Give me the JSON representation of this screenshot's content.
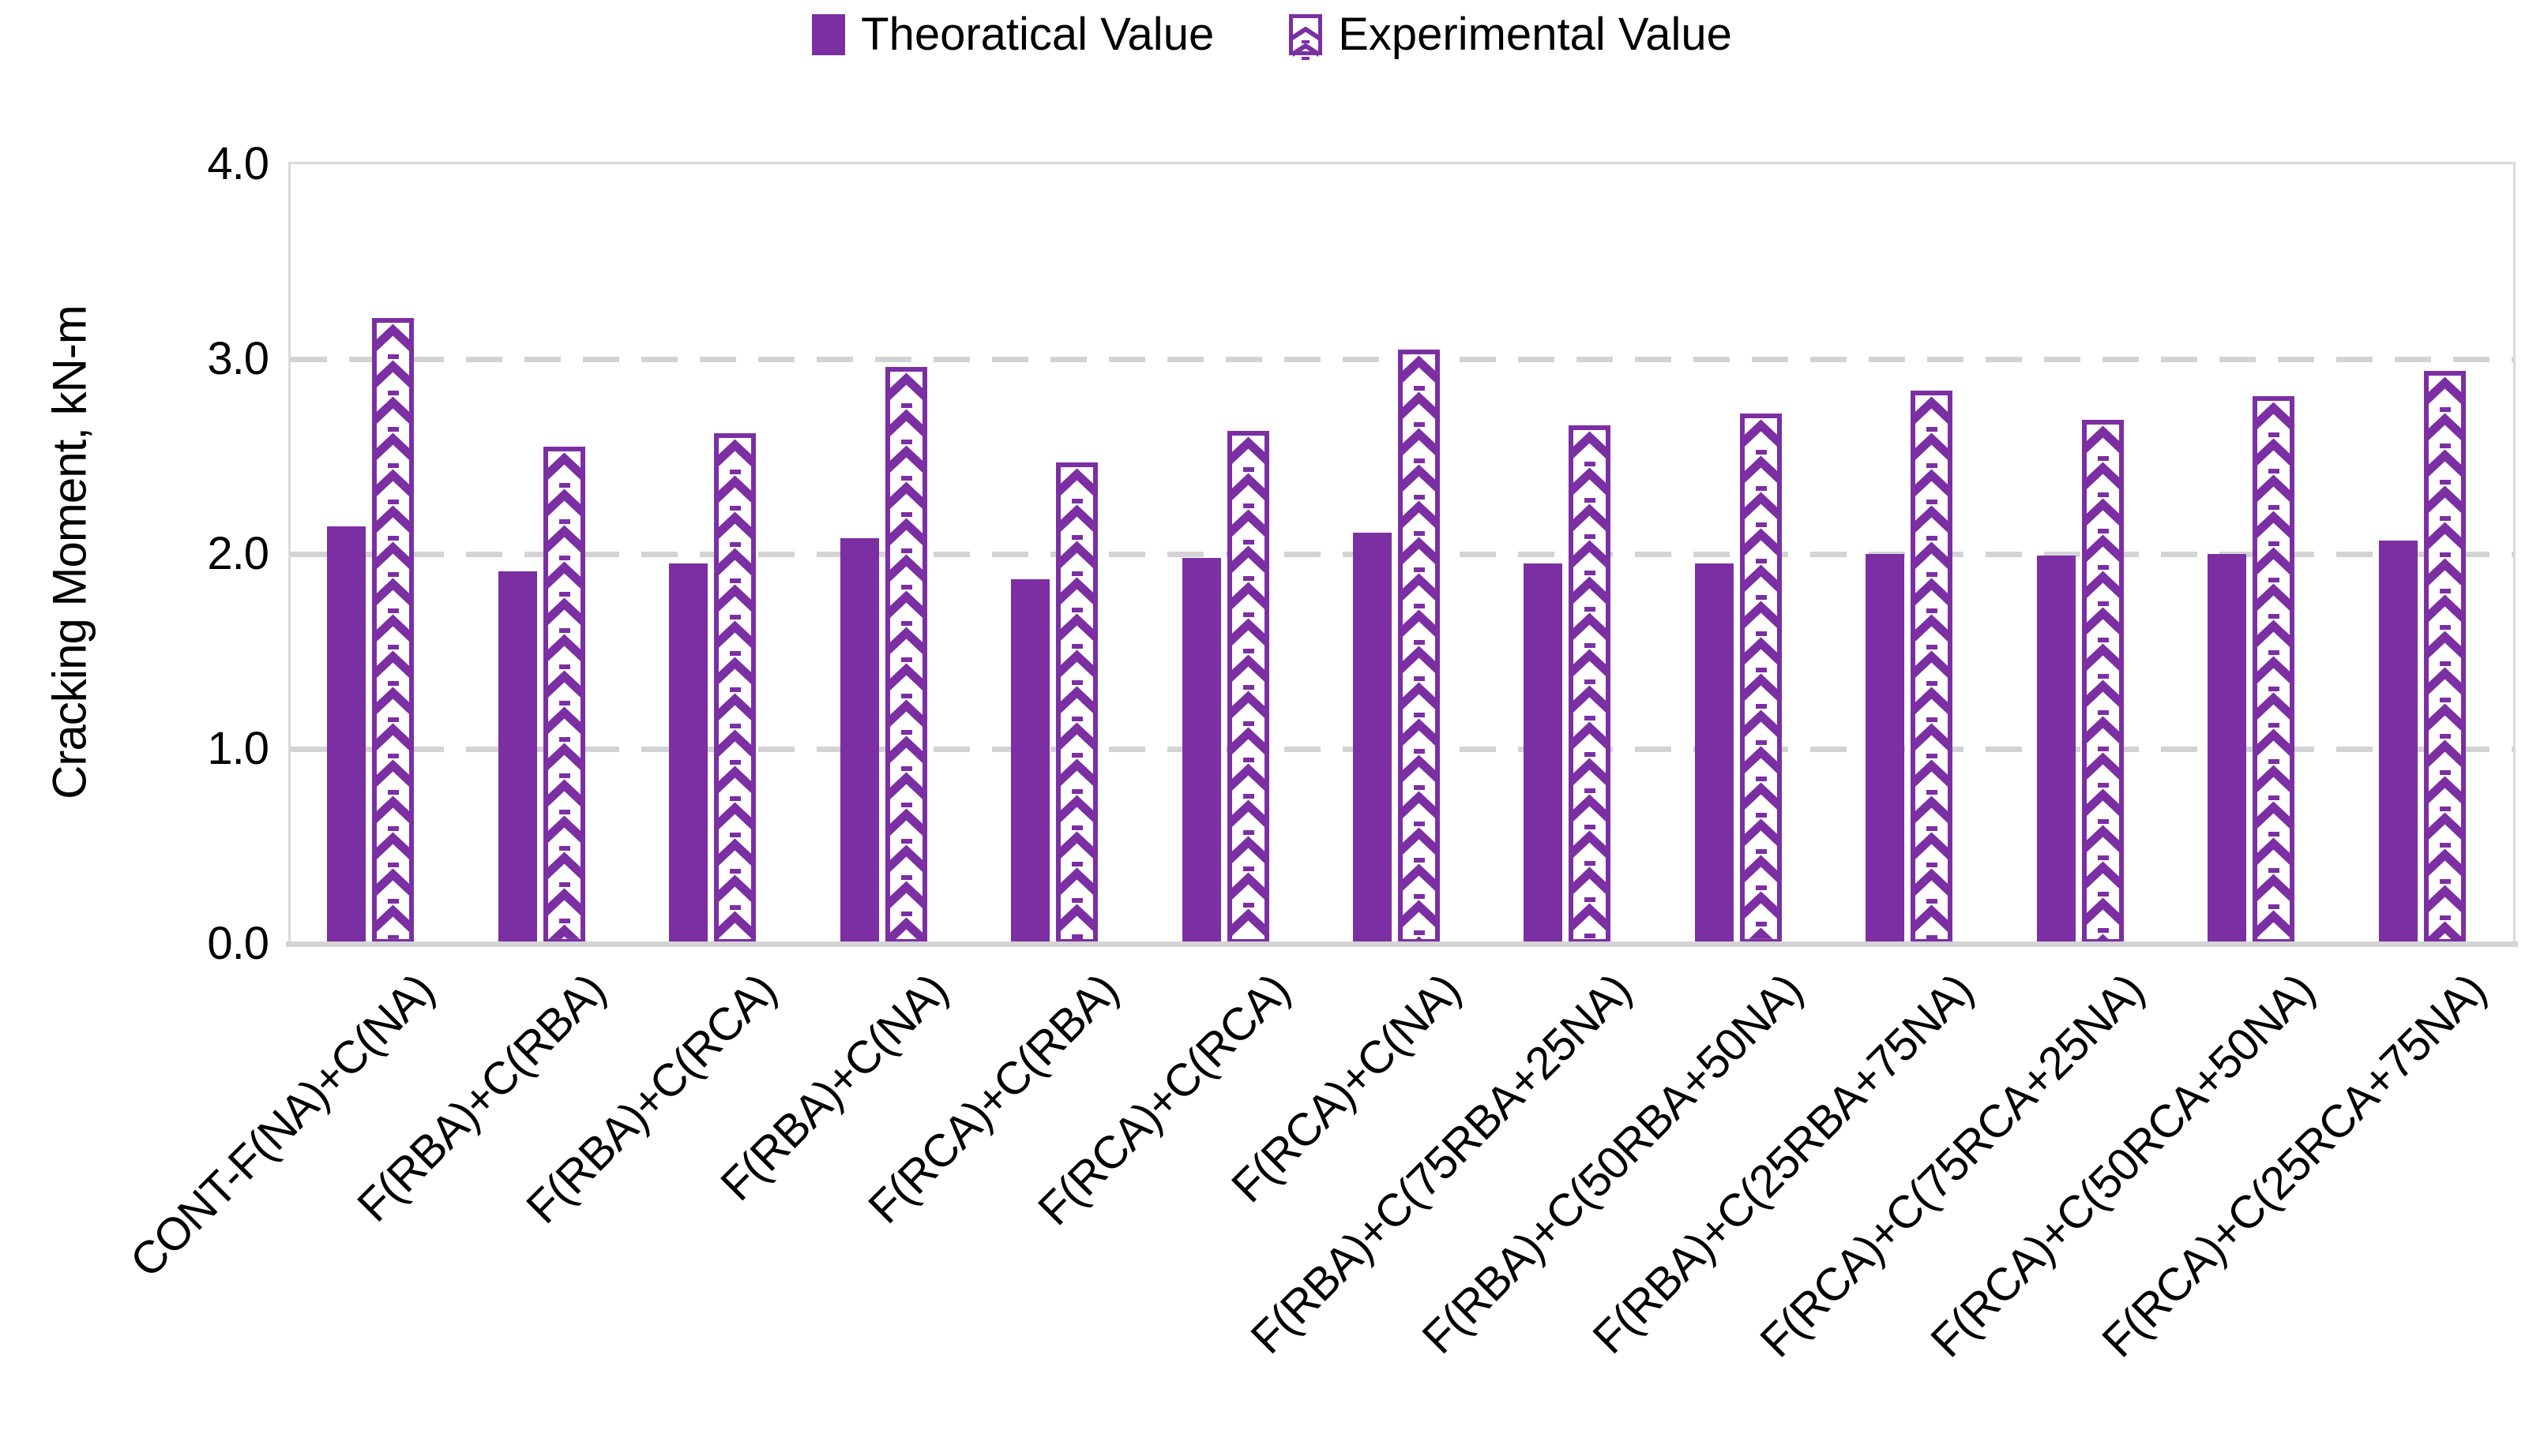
{
  "legend": {
    "position": "top-center",
    "items": [
      {
        "label": "Theoratical Value",
        "swatch": "solid-purple-square"
      },
      {
        "label": "Experimental Value",
        "swatch": "chevron-pattern-square"
      }
    ]
  },
  "colors": {
    "bar_purple": "#7B2FA3",
    "gridline_gray": "#D3D3D3",
    "axis_gray": "#D4D4D4",
    "plot_border_gray": "#DADADA",
    "text": "#000000"
  },
  "chart_data": {
    "type": "bar",
    "title": "",
    "xlabel": "",
    "ylabel": "Cracking Moment, kN-m",
    "ylim": [
      0,
      4.0
    ],
    "ytick_labels": [
      "0.0",
      "1.0",
      "2.0",
      "3.0",
      "4.0"
    ],
    "ytick_values": [
      0,
      1,
      2,
      3,
      4
    ],
    "grid": "horizontal dashed",
    "legend_position": "top-center",
    "categories": [
      "CONT-F(NA)+C(NA)",
      "F(RBA)+C(RBA)",
      "F(RBA)+C(RCA)",
      "F(RBA)+C(NA)",
      "F(RCA)+C(RBA)",
      "F(RCA)+C(RCA)",
      "F(RCA)+C(NA)",
      "F(RBA)+C(75RBA+25NA)",
      "F(RBA)+C(50RBA+50NA)",
      "F(RBA)+C(25RBA+75NA)",
      "F(RCA)+C(75RCA+25NA)",
      "F(RCA)+C(50RCA+50NA)",
      "F(RCA)+C(25RCA+75NA)"
    ],
    "series": [
      {
        "name": "Theoratical Value",
        "style": "solid",
        "color": "#7B2FA3",
        "values": [
          2.14,
          1.91,
          1.95,
          2.08,
          1.87,
          1.98,
          2.11,
          1.95,
          1.95,
          2.0,
          1.99,
          2.0,
          2.07
        ]
      },
      {
        "name": "Experimental Value",
        "style": "chevron-pattern-outline",
        "color": "#7B2FA3",
        "values": [
          3.21,
          2.55,
          2.62,
          2.96,
          2.47,
          2.63,
          3.05,
          2.66,
          2.72,
          2.84,
          2.69,
          2.81,
          2.94
        ]
      }
    ]
  }
}
